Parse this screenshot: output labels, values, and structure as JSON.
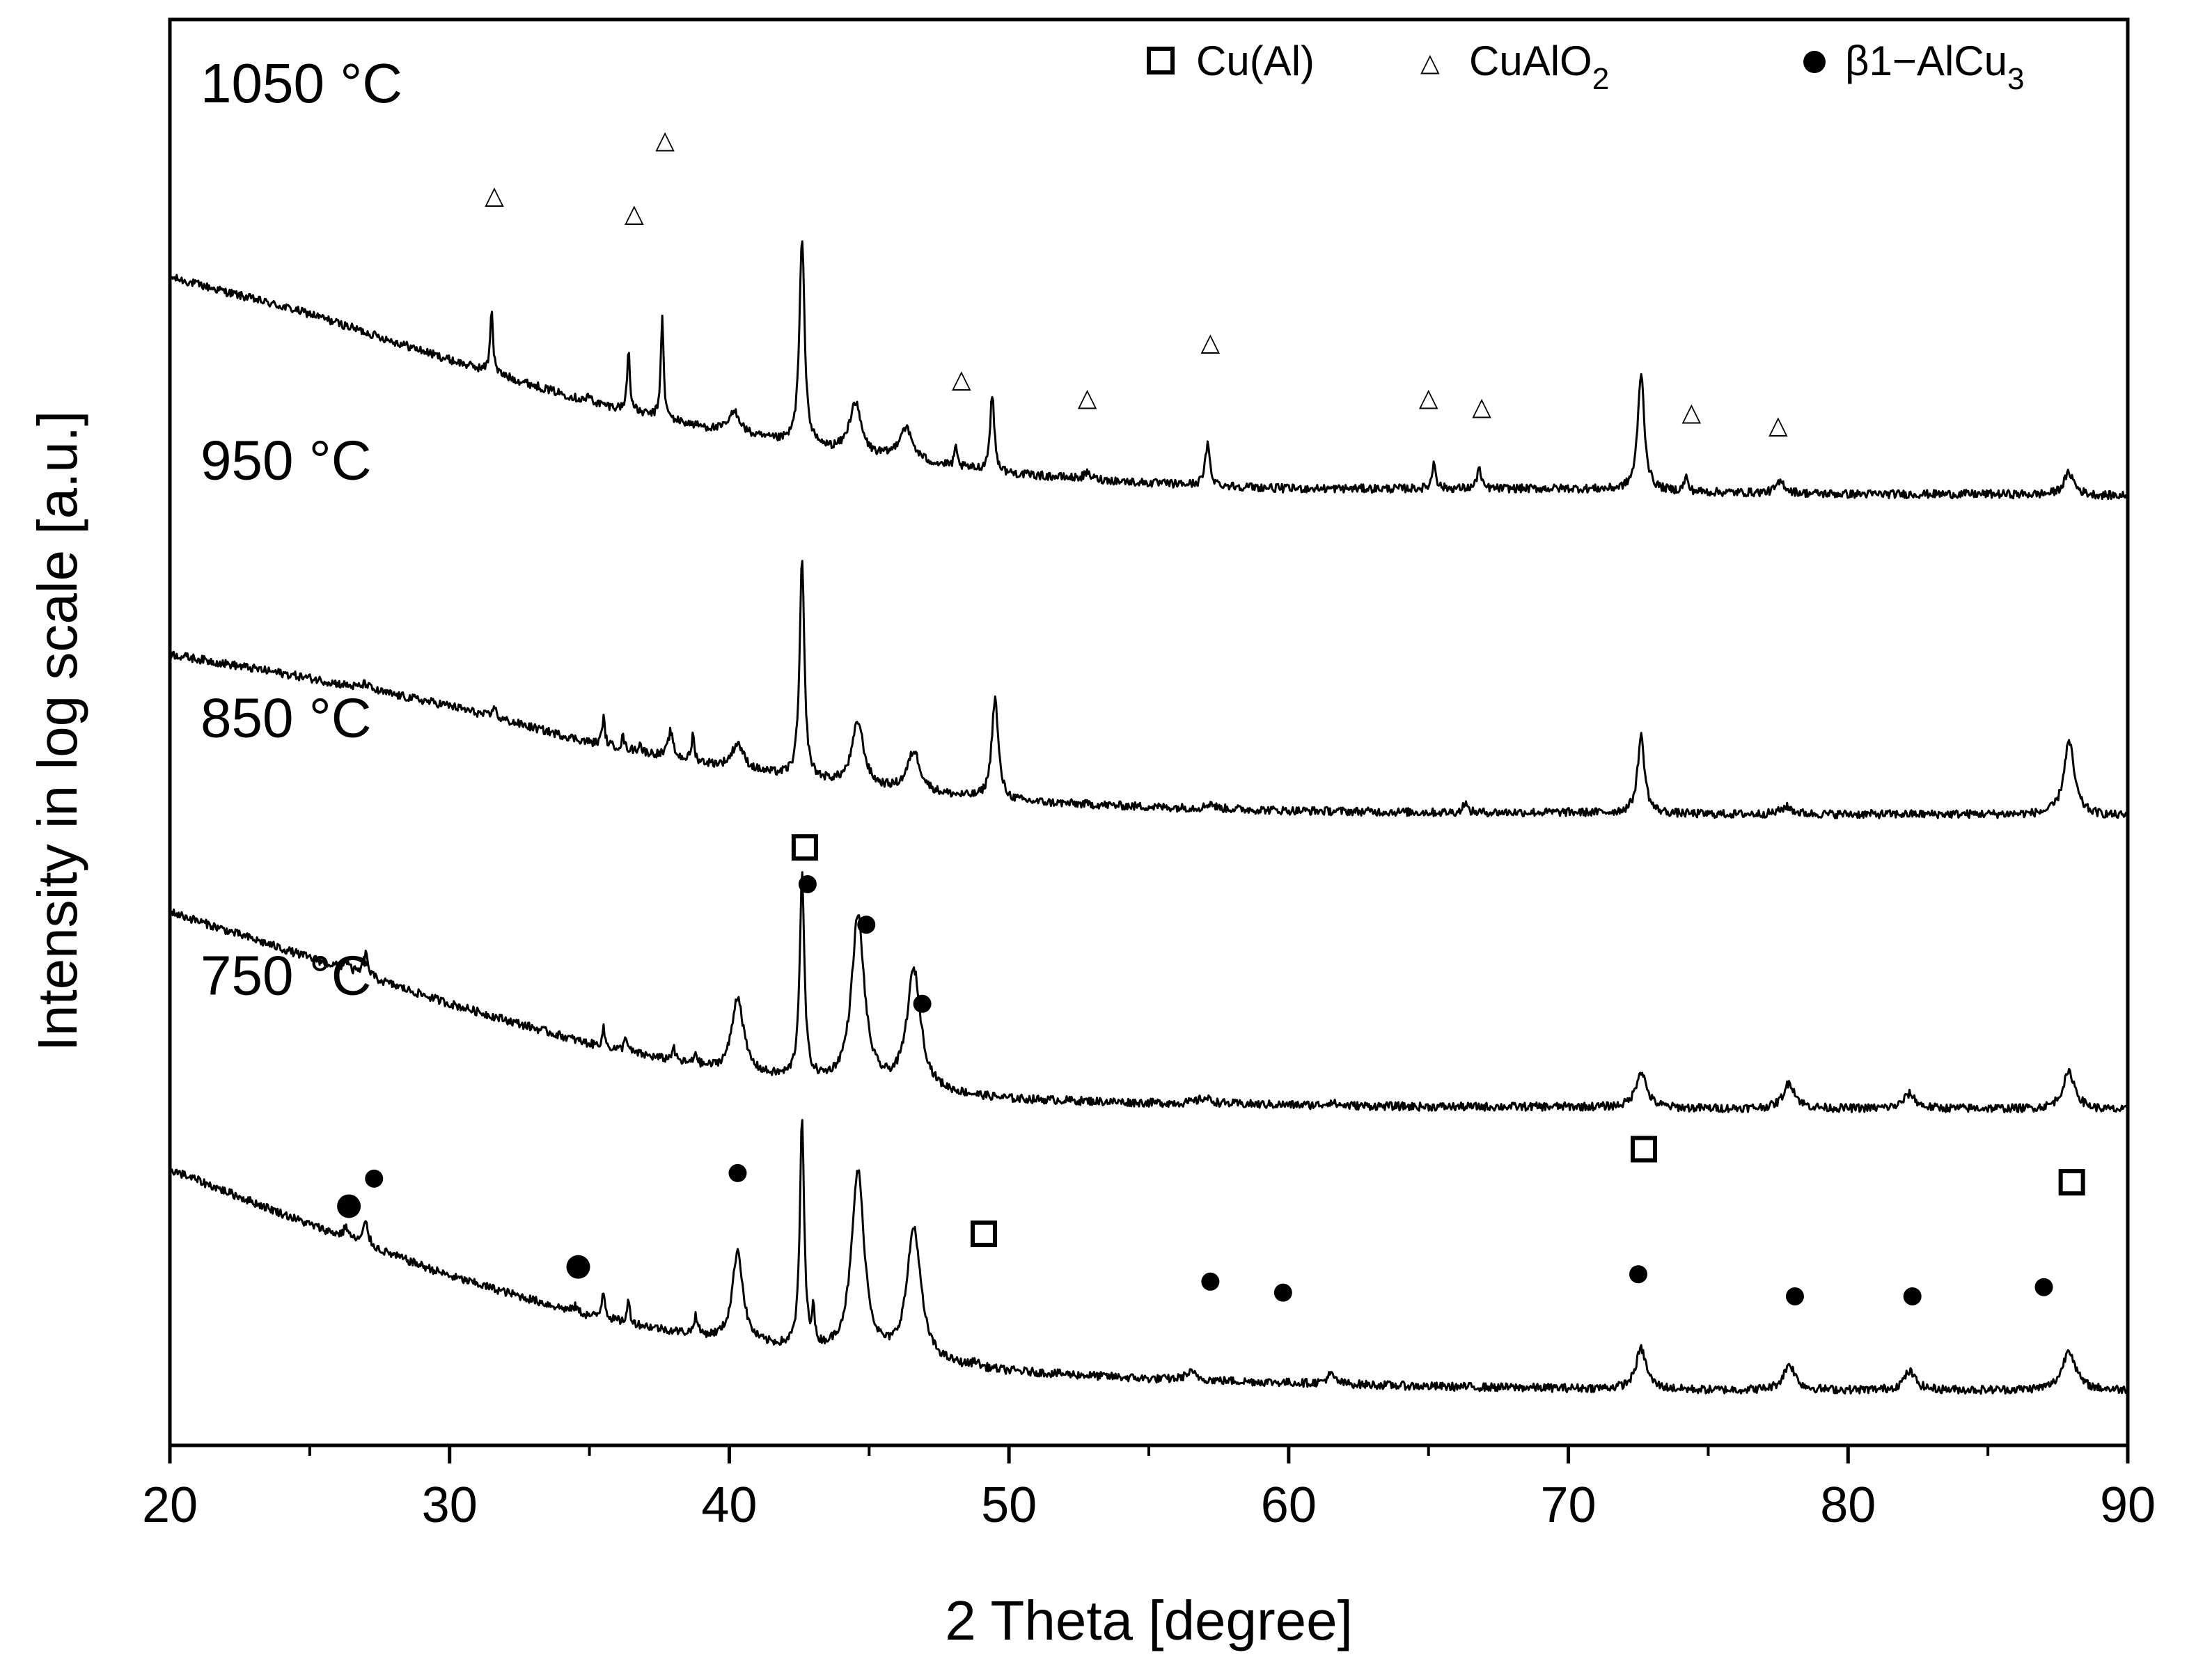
{
  "chart_data": {
    "type": "line",
    "title": "",
    "xlabel": "2 Theta [degree]",
    "ylabel": "Intensity in log scale [a.u.]",
    "xlim": [
      20,
      90
    ],
    "x_ticks": [
      "20",
      "30",
      "40",
      "50",
      "60",
      "70",
      "80",
      "90"
    ],
    "grid": false,
    "legend_position": "top-right",
    "legend": [
      {
        "symbol": "open-square",
        "text": "Cu(Al)"
      },
      {
        "symbol": "triangle",
        "text": "CuAlO",
        "sub": "2"
      },
      {
        "symbol": "filled-circle",
        "text": "β1−AlCu",
        "sub": "3"
      }
    ],
    "series": [
      {
        "name": "1050 °C",
        "baseline": [
          [
            20,
            5.15
          ],
          [
            25,
            4.95
          ],
          [
            30,
            4.7
          ],
          [
            35,
            4.47
          ],
          [
            40,
            4.3
          ],
          [
            45,
            4.17
          ],
          [
            50,
            4.08
          ],
          [
            55,
            4.03
          ],
          [
            60,
            4.0
          ],
          [
            65,
            4.0
          ],
          [
            70,
            4.0
          ],
          [
            75,
            3.98
          ],
          [
            80,
            3.97
          ],
          [
            85,
            3.97
          ],
          [
            90,
            3.96
          ]
        ],
        "peaks": [
          [
            31.5,
            0.35,
            0.12
          ],
          [
            35.0,
            0.03,
            0.2
          ],
          [
            36.4,
            0.33,
            0.12
          ],
          [
            37.6,
            0.55,
            0.12
          ],
          [
            40.2,
            0.12,
            0.5
          ],
          [
            42.6,
            1.12,
            0.22
          ],
          [
            44.5,
            0.28,
            0.5
          ],
          [
            46.3,
            0.18,
            0.6
          ],
          [
            48.1,
            0.1,
            0.12
          ],
          [
            49.4,
            0.42,
            0.18
          ],
          [
            52.8,
            0.03,
            0.3
          ],
          [
            57.1,
            0.22,
            0.2
          ],
          [
            65.2,
            0.15,
            0.15
          ],
          [
            66.8,
            0.12,
            0.15
          ],
          [
            72.6,
            0.64,
            0.28
          ],
          [
            74.2,
            0.08,
            0.15
          ],
          [
            77.6,
            0.06,
            0.4
          ],
          [
            87.9,
            0.12,
            0.45
          ]
        ]
      },
      {
        "name": "950 °C",
        "baseline": [
          [
            20,
            3.1
          ],
          [
            25,
            2.97
          ],
          [
            30,
            2.82
          ],
          [
            35,
            2.62
          ],
          [
            40,
            2.48
          ],
          [
            45,
            2.37
          ],
          [
            50,
            2.3
          ],
          [
            55,
            2.27
          ],
          [
            60,
            2.25
          ],
          [
            65,
            2.24
          ],
          [
            70,
            2.24
          ],
          [
            75,
            2.23
          ],
          [
            80,
            2.23
          ],
          [
            85,
            2.23
          ],
          [
            90,
            2.22
          ]
        ],
        "peaks": [
          [
            27.0,
            0.03,
            0.3
          ],
          [
            31.6,
            0.08,
            0.1
          ],
          [
            35.5,
            0.15,
            0.12
          ],
          [
            36.2,
            0.07,
            0.1
          ],
          [
            36.8,
            0.05,
            0.1
          ],
          [
            37.9,
            0.14,
            0.2
          ],
          [
            38.7,
            0.14,
            0.12
          ],
          [
            40.3,
            0.14,
            0.5
          ],
          [
            42.6,
            1.18,
            0.2
          ],
          [
            44.6,
            0.35,
            0.5
          ],
          [
            46.6,
            0.22,
            0.55
          ],
          [
            49.5,
            0.55,
            0.28
          ],
          [
            57.2,
            0.03,
            0.3
          ],
          [
            66.3,
            0.06,
            0.15
          ],
          [
            72.6,
            0.42,
            0.3
          ],
          [
            77.8,
            0.04,
            0.5
          ],
          [
            87.9,
            0.4,
            0.45
          ]
        ]
      },
      {
        "name": "850 °C",
        "baseline": [
          [
            20,
            1.7
          ],
          [
            25,
            1.45
          ],
          [
            30,
            1.2
          ],
          [
            35,
            0.98
          ],
          [
            40,
            0.82
          ],
          [
            45,
            0.74
          ],
          [
            50,
            0.68
          ],
          [
            55,
            0.66
          ],
          [
            60,
            0.65
          ],
          [
            65,
            0.64
          ],
          [
            70,
            0.64
          ],
          [
            75,
            0.63
          ],
          [
            80,
            0.63
          ],
          [
            85,
            0.63
          ],
          [
            90,
            0.62
          ]
        ],
        "peaks": [
          [
            26.3,
            0.05,
            0.2
          ],
          [
            27.0,
            0.12,
            0.2
          ],
          [
            35.5,
            0.1,
            0.12
          ],
          [
            36.3,
            0.09,
            0.12
          ],
          [
            38.0,
            0.07,
            0.15
          ],
          [
            38.8,
            0.07,
            0.12
          ],
          [
            40.3,
            0.42,
            0.5
          ],
          [
            42.6,
            1.1,
            0.2
          ],
          [
            44.6,
            0.92,
            0.55
          ],
          [
            46.6,
            0.65,
            0.6
          ],
          [
            57.0,
            0.03,
            0.6
          ],
          [
            61.5,
            0.02,
            0.3
          ],
          [
            72.6,
            0.2,
            0.45
          ],
          [
            77.9,
            0.14,
            0.5
          ],
          [
            82.2,
            0.08,
            0.5
          ],
          [
            87.9,
            0.2,
            0.55
          ]
        ]
      },
      {
        "name": "750 °C",
        "baseline": [
          [
            20,
            0.3
          ],
          [
            25,
            0.0
          ],
          [
            30,
            -0.28
          ],
          [
            35,
            -0.5
          ],
          [
            40,
            -0.64
          ],
          [
            45,
            -0.73
          ],
          [
            50,
            -0.8
          ],
          [
            55,
            -0.84
          ],
          [
            60,
            -0.86
          ],
          [
            65,
            -0.88
          ],
          [
            70,
            -0.89
          ],
          [
            75,
            -0.9
          ],
          [
            80,
            -0.9
          ],
          [
            85,
            -0.9
          ],
          [
            90,
            -0.9
          ]
        ],
        "peaks": [
          [
            26.3,
            0.06,
            0.2
          ],
          [
            27.0,
            0.12,
            0.22
          ],
          [
            34.5,
            0.03,
            0.2
          ],
          [
            35.5,
            0.15,
            0.15
          ],
          [
            36.4,
            0.12,
            0.12
          ],
          [
            38.8,
            0.1,
            0.15
          ],
          [
            40.3,
            0.5,
            0.45
          ],
          [
            42.6,
            1.25,
            0.18
          ],
          [
            43.0,
            0.2,
            0.1
          ],
          [
            44.6,
            1.0,
            0.55
          ],
          [
            46.6,
            0.72,
            0.6
          ],
          [
            48.8,
            0.03,
            0.2
          ],
          [
            56.5,
            0.04,
            0.5
          ],
          [
            61.5,
            0.05,
            0.35
          ],
          [
            72.6,
            0.22,
            0.45
          ],
          [
            77.9,
            0.14,
            0.5
          ],
          [
            82.2,
            0.1,
            0.5
          ],
          [
            87.9,
            0.22,
            0.55
          ]
        ]
      }
    ],
    "y_range": [
      -1.2,
      6.55
    ],
    "markers": {
      "triangle": {
        "symbol": "△",
        "x": [
          31.6,
          36.6,
          37.7,
          48.3,
          52.8,
          57.2,
          65.0,
          66.9,
          74.4,
          77.5
        ],
        "y": [
          5.55,
          5.45,
          5.85,
          4.55,
          4.45,
          4.75,
          4.45,
          4.4,
          4.37,
          4.3
        ]
      },
      "filled-circle": {
        "x": [
          26.4,
          27.3,
          34.6,
          40.3,
          42.8,
          44.9,
          46.9,
          57.2,
          59.8,
          72.5,
          78.1,
          82.3,
          87.0
        ],
        "y": [
          0.1,
          0.25,
          -0.23,
          0.28,
          1.85,
          1.63,
          1.2,
          -0.31,
          -0.37,
          -0.27,
          -0.39,
          -0.39,
          -0.34
        ],
        "big": [
          true,
          false,
          true,
          false,
          false,
          false,
          false,
          false,
          false,
          false,
          false,
          false,
          false
        ]
      },
      "open-square": {
        "x": [
          42.7,
          49.1,
          72.7,
          88.0
        ],
        "y": [
          2.05,
          -0.05,
          0.41,
          0.23
        ]
      }
    }
  }
}
